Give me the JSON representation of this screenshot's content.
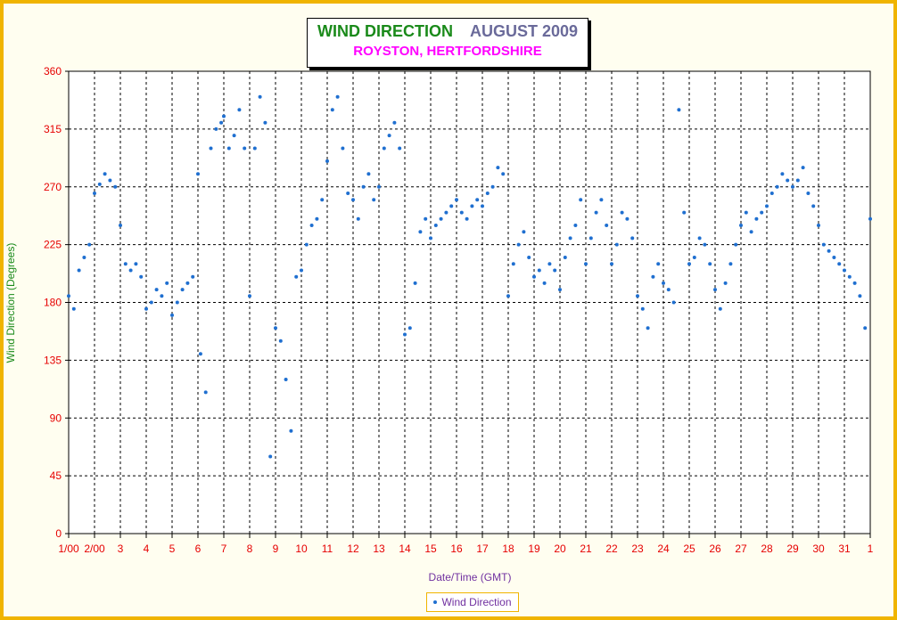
{
  "chart_data": {
    "type": "scatter",
    "title": "WIND DIRECTION",
    "title_month": "AUGUST 2009",
    "subtitle": "ROYSTON, HERTFORDSHIRE",
    "xlabel": "Date/Time (GMT)",
    "ylabel": "Wind Direction (Degrees)",
    "ylim": [
      0,
      360
    ],
    "yticks": [
      0,
      45,
      90,
      135,
      180,
      225,
      270,
      315,
      360
    ],
    "xlim": [
      1,
      32
    ],
    "xtick_labels": [
      "1/00",
      "2/00",
      "3",
      "4",
      "5",
      "6",
      "7",
      "8",
      "9",
      "10",
      "11",
      "12",
      "13",
      "14",
      "15",
      "16",
      "17",
      "18",
      "19",
      "20",
      "21",
      "22",
      "23",
      "24",
      "25",
      "26",
      "27",
      "28",
      "29",
      "30",
      "31",
      "1"
    ],
    "grid": true,
    "legend_position": "bottom",
    "marker_color": "#1f6fd0",
    "series": [
      {
        "name": "Wind Direction",
        "points": [
          [
            1.0,
            185
          ],
          [
            1.2,
            175
          ],
          [
            1.4,
            205
          ],
          [
            1.6,
            215
          ],
          [
            1.8,
            225
          ],
          [
            2.0,
            265
          ],
          [
            2.2,
            272
          ],
          [
            2.4,
            280
          ],
          [
            2.6,
            275
          ],
          [
            2.8,
            270
          ],
          [
            3.0,
            240
          ],
          [
            3.2,
            210
          ],
          [
            3.4,
            205
          ],
          [
            3.6,
            210
          ],
          [
            3.8,
            200
          ],
          [
            4.0,
            175
          ],
          [
            4.2,
            180
          ],
          [
            4.4,
            190
          ],
          [
            4.6,
            185
          ],
          [
            4.8,
            195
          ],
          [
            5.0,
            170
          ],
          [
            5.2,
            180
          ],
          [
            5.4,
            190
          ],
          [
            5.6,
            195
          ],
          [
            5.8,
            200
          ],
          [
            6.0,
            280
          ],
          [
            6.1,
            140
          ],
          [
            6.3,
            110
          ],
          [
            6.5,
            300
          ],
          [
            6.7,
            315
          ],
          [
            6.9,
            320
          ],
          [
            7.0,
            325
          ],
          [
            7.2,
            300
          ],
          [
            7.4,
            310
          ],
          [
            7.6,
            330
          ],
          [
            7.8,
            300
          ],
          [
            8.0,
            185
          ],
          [
            8.2,
            300
          ],
          [
            8.4,
            340
          ],
          [
            8.6,
            320
          ],
          [
            8.8,
            60
          ],
          [
            9.0,
            160
          ],
          [
            9.2,
            150
          ],
          [
            9.4,
            120
          ],
          [
            9.6,
            80
          ],
          [
            9.8,
            200
          ],
          [
            10.0,
            205
          ],
          [
            10.2,
            225
          ],
          [
            10.4,
            240
          ],
          [
            10.6,
            245
          ],
          [
            10.8,
            260
          ],
          [
            11.0,
            290
          ],
          [
            11.2,
            330
          ],
          [
            11.4,
            340
          ],
          [
            11.6,
            300
          ],
          [
            11.8,
            265
          ],
          [
            12.0,
            260
          ],
          [
            12.2,
            245
          ],
          [
            12.4,
            270
          ],
          [
            12.6,
            280
          ],
          [
            12.8,
            260
          ],
          [
            13.0,
            270
          ],
          [
            13.2,
            300
          ],
          [
            13.4,
            310
          ],
          [
            13.6,
            320
          ],
          [
            13.8,
            300
          ],
          [
            14.0,
            155
          ],
          [
            14.2,
            160
          ],
          [
            14.4,
            195
          ],
          [
            14.6,
            235
          ],
          [
            14.8,
            245
          ],
          [
            15.0,
            230
          ],
          [
            15.2,
            240
          ],
          [
            15.4,
            245
          ],
          [
            15.6,
            250
          ],
          [
            15.8,
            255
          ],
          [
            16.0,
            260
          ],
          [
            16.2,
            250
          ],
          [
            16.4,
            245
          ],
          [
            16.6,
            255
          ],
          [
            16.8,
            260
          ],
          [
            17.0,
            255
          ],
          [
            17.2,
            265
          ],
          [
            17.4,
            270
          ],
          [
            17.6,
            285
          ],
          [
            17.8,
            280
          ],
          [
            18.0,
            185
          ],
          [
            18.2,
            210
          ],
          [
            18.4,
            225
          ],
          [
            18.6,
            235
          ],
          [
            18.8,
            215
          ],
          [
            19.0,
            200
          ],
          [
            19.2,
            205
          ],
          [
            19.4,
            195
          ],
          [
            19.6,
            210
          ],
          [
            19.8,
            205
          ],
          [
            20.0,
            190
          ],
          [
            20.2,
            215
          ],
          [
            20.4,
            230
          ],
          [
            20.6,
            240
          ],
          [
            20.8,
            260
          ],
          [
            21.0,
            210
          ],
          [
            21.2,
            230
          ],
          [
            21.4,
            250
          ],
          [
            21.6,
            260
          ],
          [
            21.8,
            240
          ],
          [
            22.0,
            210
          ],
          [
            22.2,
            225
          ],
          [
            22.4,
            250
          ],
          [
            22.6,
            245
          ],
          [
            22.8,
            230
          ],
          [
            23.0,
            185
          ],
          [
            23.2,
            175
          ],
          [
            23.4,
            160
          ],
          [
            23.6,
            200
          ],
          [
            23.8,
            210
          ],
          [
            24.0,
            195
          ],
          [
            24.2,
            190
          ],
          [
            24.4,
            180
          ],
          [
            24.6,
            330
          ],
          [
            24.8,
            250
          ],
          [
            25.0,
            210
          ],
          [
            25.2,
            215
          ],
          [
            25.4,
            230
          ],
          [
            25.6,
            225
          ],
          [
            25.8,
            210
          ],
          [
            26.0,
            190
          ],
          [
            26.2,
            175
          ],
          [
            26.4,
            195
          ],
          [
            26.6,
            210
          ],
          [
            26.8,
            225
          ],
          [
            27.0,
            240
          ],
          [
            27.2,
            250
          ],
          [
            27.4,
            235
          ],
          [
            27.6,
            245
          ],
          [
            27.8,
            250
          ],
          [
            28.0,
            255
          ],
          [
            28.2,
            265
          ],
          [
            28.4,
            270
          ],
          [
            28.6,
            280
          ],
          [
            28.8,
            275
          ],
          [
            29.0,
            270
          ],
          [
            29.2,
            275
          ],
          [
            29.4,
            285
          ],
          [
            29.6,
            265
          ],
          [
            29.8,
            255
          ],
          [
            30.0,
            240
          ],
          [
            30.2,
            225
          ],
          [
            30.4,
            220
          ],
          [
            30.6,
            215
          ],
          [
            30.8,
            210
          ],
          [
            31.0,
            205
          ],
          [
            31.2,
            200
          ],
          [
            31.4,
            195
          ],
          [
            31.6,
            185
          ],
          [
            31.8,
            160
          ],
          [
            32.0,
            245
          ]
        ]
      }
    ]
  }
}
